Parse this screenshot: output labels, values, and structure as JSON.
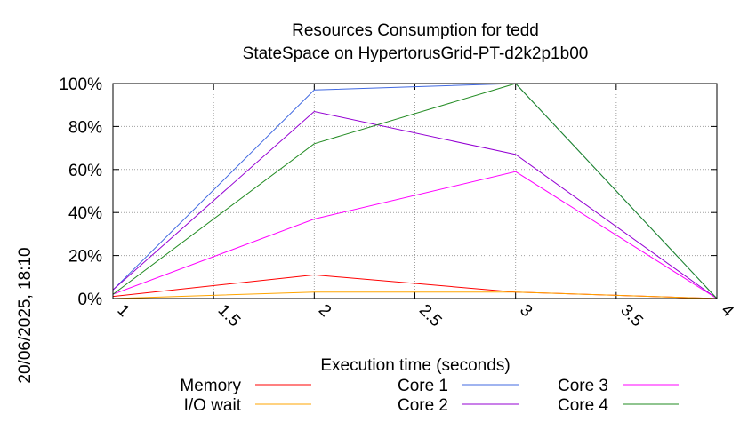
{
  "chart_data": {
    "type": "line",
    "title": "Resources Consumption for tedd",
    "subtitle": "StateSpace on HypertorusGrid-PT-d2k2p1b00",
    "xlabel": "Execution time (seconds)",
    "ylabel": "",
    "side_label": "20/06/2025, 18:10",
    "xlim": [
      1,
      4
    ],
    "ylim": [
      0,
      100
    ],
    "x_ticks": [
      "1",
      "1.5",
      "2",
      "2.5",
      "3",
      "3.5",
      "4"
    ],
    "y_ticks": [
      "0%",
      "20%",
      "40%",
      "60%",
      "80%",
      "100%"
    ],
    "grid": true,
    "legend_position": "bottom",
    "x": [
      1,
      2,
      3,
      4
    ],
    "series": [
      {
        "name": "Memory",
        "color": "#ff0000",
        "values": [
          1,
          11,
          3,
          0
        ]
      },
      {
        "name": "I/O wait",
        "color": "#ffa500",
        "values": [
          0,
          3,
          3,
          0
        ]
      },
      {
        "name": "Core 1",
        "color": "#4169e1",
        "values": [
          4,
          97,
          100,
          0
        ]
      },
      {
        "name": "Core 2",
        "color": "#9400d3",
        "values": [
          4,
          87,
          67,
          0
        ]
      },
      {
        "name": "Core 3",
        "color": "#ff00ff",
        "values": [
          2,
          37,
          59,
          0
        ]
      },
      {
        "name": "Core 4",
        "color": "#228b22",
        "values": [
          2,
          72,
          100,
          0
        ]
      }
    ]
  }
}
